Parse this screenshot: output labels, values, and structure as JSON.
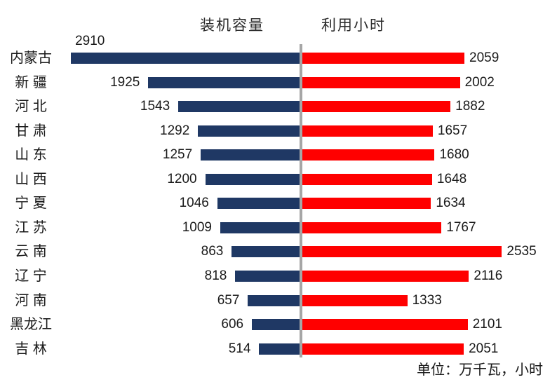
{
  "header": {
    "left_series_title": "装机容量",
    "right_series_title": "利用小时"
  },
  "footer": {
    "unit_note": "单位：万千瓦，小时"
  },
  "colors": {
    "capacity_bar": "#1F3864",
    "hours_bar": "#FF0000",
    "divider": "#A6A6A6",
    "text": "#1A1A1A"
  },
  "chart_data": {
    "type": "bar",
    "variant": "diverging-horizontal (tornado)",
    "title": "",
    "xlabel": "",
    "ylabel": "",
    "axes_hidden": true,
    "grid": false,
    "legend_position": "top (as series titles)",
    "unit_note": "单位：万千瓦，小时",
    "categories": [
      "内蒙古",
      "新 疆",
      "河 北",
      "甘 肃",
      "山 东",
      "山 西",
      "宁 夏",
      "江 苏",
      "云 南",
      "辽 宁",
      "河 南",
      "黑龙江",
      "吉 林"
    ],
    "series": [
      {
        "name": "装机容量",
        "side": "left",
        "color": "#1F3864",
        "values": [
          2910,
          1925,
          1543,
          1292,
          1257,
          1200,
          1046,
          1009,
          863,
          818,
          657,
          606,
          514
        ]
      },
      {
        "name": "利用小时",
        "side": "right",
        "color": "#FF0000",
        "values": [
          2059,
          2002,
          1882,
          1657,
          1680,
          1648,
          1634,
          1767,
          2535,
          2116,
          1333,
          2101,
          2051
        ]
      }
    ]
  }
}
